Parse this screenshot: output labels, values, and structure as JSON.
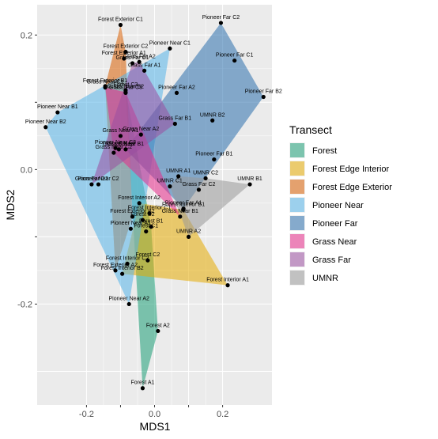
{
  "chart_data": {
    "type": "scatter",
    "xlabel": "MDS1",
    "ylabel": "MDS2",
    "xlim": [
      -0.345,
      0.345
    ],
    "ylim": [
      -0.35,
      0.245
    ],
    "x_ticks": [
      -0.2,
      -0.1,
      0.0,
      0.1,
      0.2
    ],
    "x_tick_labels": [
      "-0.2",
      "",
      "0.0",
      "",
      "0.2"
    ],
    "y_ticks": [
      -0.2,
      -0.1,
      0.0,
      0.1,
      0.2
    ],
    "y_tick_labels": [
      "-0.2",
      "",
      "0.0",
      "",
      "0.2"
    ],
    "grid": true,
    "legend_position": "right",
    "legend_title": "Transect",
    "series": [
      {
        "name": "Forest",
        "color": "#1b9e77",
        "points": [
          {
            "label": "Forest A1",
            "x": -0.035,
            "y": -0.325
          },
          {
            "label": "Forest A2",
            "x": 0.01,
            "y": -0.24
          },
          {
            "label": "Forest B1",
            "x": -0.01,
            "y": -0.085
          },
          {
            "label": "Forest B2",
            "x": -0.035,
            "y": -0.075
          },
          {
            "label": "Forest C1",
            "x": -0.025,
            "y": -0.092
          },
          {
            "label": "Forest C2",
            "x": -0.02,
            "y": -0.135
          },
          {
            "label": "Forest C3",
            "x": -0.085,
            "y": 0.118
          }
        ]
      },
      {
        "name": "Forest Edge Interior",
        "color": "#e6ab02",
        "points": [
          {
            "label": "Forest Interior A1",
            "x": 0.215,
            "y": -0.172
          },
          {
            "label": "Forest Interior A2",
            "x": -0.045,
            "y": -0.05
          },
          {
            "label": "Forest Interior B1",
            "x": 0.085,
            "y": -0.06
          },
          {
            "label": "Forest Interior B2",
            "x": -0.095,
            "y": -0.155
          },
          {
            "label": "Forest Interior C1",
            "x": -0.015,
            "y": -0.065
          },
          {
            "label": "Forest Interior C2",
            "x": -0.08,
            "y": -0.14
          }
        ]
      },
      {
        "name": "Forest Edge Exterior",
        "color": "#d95f02",
        "points": [
          {
            "label": "Forest Exterior A1",
            "x": -0.09,
            "y": 0.165
          },
          {
            "label": "Forest Exterior A2",
            "x": -0.115,
            "y": -0.15
          },
          {
            "label": "Forest Exterior B1",
            "x": -0.145,
            "y": 0.124
          },
          {
            "label": "Forest Exterior B2",
            "x": -0.065,
            "y": -0.07
          },
          {
            "label": "Forest Exterior C1",
            "x": -0.1,
            "y": 0.215
          },
          {
            "label": "Forest Exterior C2",
            "x": -0.085,
            "y": 0.175
          }
        ]
      },
      {
        "name": "Pioneer Near",
        "color": "#56b4e9",
        "points": [
          {
            "label": "Pioneer Near A1",
            "x": -0.07,
            "y": -0.088
          },
          {
            "label": "Pioneer Near A2",
            "x": -0.075,
            "y": -0.2
          },
          {
            "label": "Pioneer Near B1",
            "x": -0.285,
            "y": 0.085
          },
          {
            "label": "Pioneer Near B2",
            "x": -0.32,
            "y": 0.063
          },
          {
            "label": "Pioneer Near C1",
            "x": 0.045,
            "y": 0.18
          },
          {
            "label": "Pioneer Near C2",
            "x": -0.165,
            "y": -0.022
          },
          {
            "label": "Pioneer Near C3",
            "x": -0.115,
            "y": 0.032
          }
        ]
      },
      {
        "name": "Pioneer Far",
        "color": "#2c6fad",
        "points": [
          {
            "label": "Pioneer Far A1",
            "x": 0.085,
            "y": -0.058
          },
          {
            "label": "Pioneer Far A2",
            "x": 0.065,
            "y": 0.114
          },
          {
            "label": "Pioneer Far B1",
            "x": 0.175,
            "y": 0.015
          },
          {
            "label": "Pioneer Far B2",
            "x": 0.32,
            "y": 0.108
          },
          {
            "label": "Pioneer Far C1",
            "x": 0.235,
            "y": 0.162
          },
          {
            "label": "Pioneer Far C2",
            "x": 0.195,
            "y": 0.218
          },
          {
            "label": "Grass Near B1",
            "x": -0.085,
            "y": 0.03
          },
          {
            "label": "UMNR B2",
            "x": 0.17,
            "y": 0.073
          }
        ]
      },
      {
        "name": "Grass Near",
        "color": "#e7298a",
        "points": [
          {
            "label": "Grass Near A1",
            "x": -0.1,
            "y": 0.05
          },
          {
            "label": "Grass Near A2",
            "x": -0.04,
            "y": 0.052
          },
          {
            "label": "Grass Near B1",
            "x": 0.075,
            "y": -0.07
          },
          {
            "label": "Grass Near B2",
            "x": -0.085,
            "y": 0.115
          },
          {
            "label": "Grass Near C1",
            "x": -0.145,
            "y": 0.122
          },
          {
            "label": "Grass Near C2",
            "x": -0.12,
            "y": 0.025
          }
        ]
      },
      {
        "name": "Grass Far",
        "color": "#9b4fa0",
        "points": [
          {
            "label": "Grass Far A1",
            "x": -0.03,
            "y": 0.147
          },
          {
            "label": "Grass Far A2",
            "x": -0.045,
            "y": 0.16
          },
          {
            "label": "Grass Far B1",
            "x": 0.06,
            "y": 0.068
          },
          {
            "label": "Grass Far B2",
            "x": -0.105,
            "y": 0.03
          },
          {
            "label": "Grass Far C1",
            "x": -0.065,
            "y": 0.158
          },
          {
            "label": "Grass Far C2",
            "x": -0.185,
            "y": -0.022
          },
          {
            "label": "Grass Far C3",
            "x": -0.085,
            "y": 0.114
          }
        ]
      },
      {
        "name": "UMNR",
        "color": "#999999",
        "points": [
          {
            "label": "UMNR A1",
            "x": 0.07,
            "y": -0.01
          },
          {
            "label": "UMNR A2",
            "x": 0.1,
            "y": -0.1
          },
          {
            "label": "UMNR B1",
            "x": 0.28,
            "y": -0.022
          },
          {
            "label": "UMNR C1",
            "x": 0.045,
            "y": -0.025
          },
          {
            "label": "UMNR C2",
            "x": 0.15,
            "y": -0.013
          },
          {
            "label": "Grass Far C2",
            "x": 0.13,
            "y": -0.03
          }
        ]
      }
    ]
  },
  "legend": {
    "title": "Transect",
    "items": [
      {
        "label": "Forest",
        "color": "#1b9e77"
      },
      {
        "label": "Forest Edge Interior",
        "color": "#e6ab02"
      },
      {
        "label": "Forest Edge Exterior",
        "color": "#d95f02"
      },
      {
        "label": "Pioneer Near",
        "color": "#56b4e9"
      },
      {
        "label": "Pioneer Far",
        "color": "#2c6fad"
      },
      {
        "label": "Grass Near",
        "color": "#e7298a"
      },
      {
        "label": "Grass Far",
        "color": "#9b4fa0"
      },
      {
        "label": "UMNR",
        "color": "#999999"
      }
    ]
  }
}
